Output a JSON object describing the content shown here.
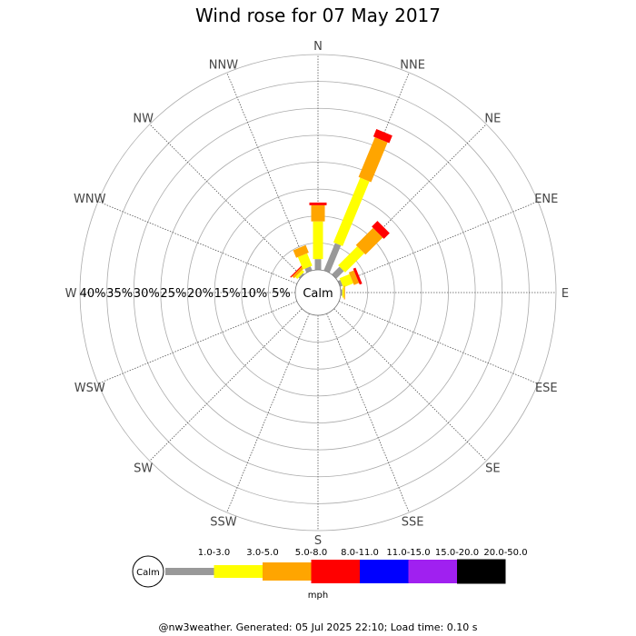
{
  "chart_data": {
    "type": "wind-rose",
    "title": "Wind rose for 07 May 2017",
    "directions": [
      "N",
      "NNE",
      "NE",
      "ENE",
      "E",
      "ESE",
      "SE",
      "SSE",
      "S",
      "SSW",
      "SW",
      "WSW",
      "W",
      "WNW",
      "NW",
      "NNW"
    ],
    "radial_axis": {
      "ticks": [
        "5%",
        "10%",
        "15%",
        "20%",
        "25%",
        "30%",
        "35%",
        "40%"
      ],
      "max": 40,
      "tick_direction": "W"
    },
    "calm_label": "Calm",
    "unit_label": "mph",
    "speed_bins": [
      {
        "label": "1.0-3.0",
        "color": "#999999"
      },
      {
        "label": "3.0-5.0",
        "color": "#ffff00"
      },
      {
        "label": "5.0-8.0",
        "color": "#ffa500"
      },
      {
        "label": "8.0-11.0",
        "color": "#ff0000"
      },
      {
        "label": "11.0-15.0",
        "color": "#0000ff"
      },
      {
        "label": "15.0-20.0",
        "color": "#a020f0"
      },
      {
        "label": "20.0-50.0",
        "color": "#000000"
      }
    ],
    "series": [
      {
        "direction": "N",
        "values": [
          2.0,
          7.0,
          3.0,
          0.5,
          0,
          0,
          0
        ]
      },
      {
        "direction": "NNE",
        "values": [
          5.5,
          13.0,
          8.0,
          1.5,
          0,
          0,
          0
        ]
      },
      {
        "direction": "NE",
        "values": [
          2.0,
          5.0,
          4.5,
          1.5,
          0,
          0,
          0
        ]
      },
      {
        "direction": "ENE",
        "values": [
          0.5,
          2.0,
          1.0,
          0.5,
          0,
          0,
          0
        ]
      },
      {
        "direction": "E",
        "values": [
          0.3,
          0.3,
          0.2,
          0,
          0,
          0,
          0
        ]
      },
      {
        "direction": "NW",
        "values": [
          0.3,
          0.5,
          0.5,
          0.2,
          0,
          0,
          0
        ]
      },
      {
        "direction": "NNW",
        "values": [
          0.8,
          2.5,
          1.5,
          0,
          0,
          0,
          0
        ]
      }
    ]
  },
  "footer": "@nw3weather. Generated: 05 Jul 2025 22:10; Load time: 0.10 s"
}
